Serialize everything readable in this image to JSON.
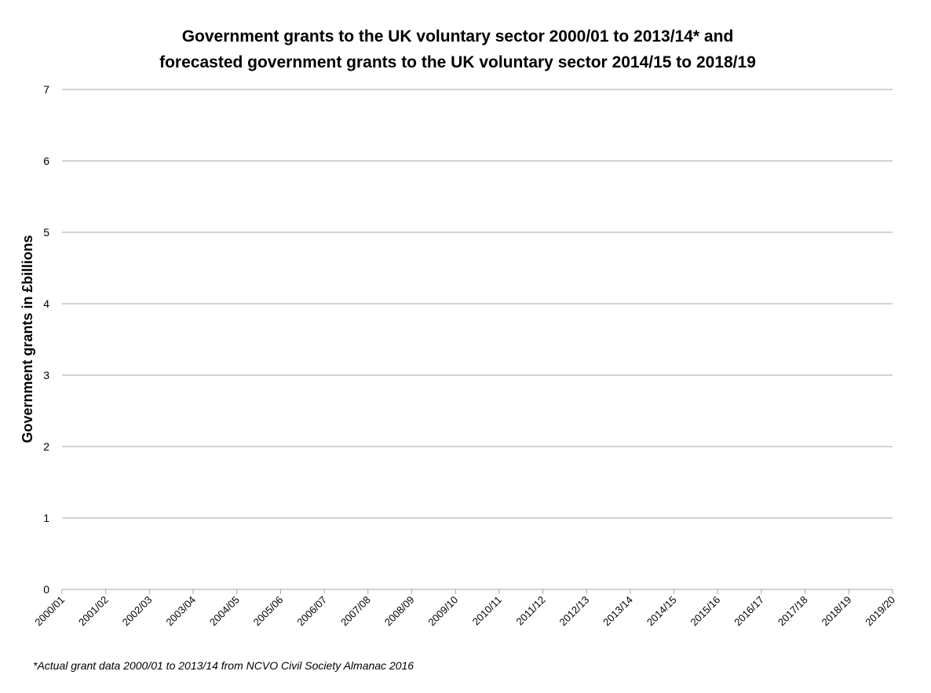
{
  "chart_data": {
    "type": "line",
    "title_lines": [
      "Government grants to the UK voluntary sector 2000/01 to 2013/14*  and",
      "forecasted government grants to the UK voluntary sector 2014/15 to 2018/19"
    ],
    "xlabel": "",
    "ylabel": "Government grants in £billions",
    "categories": [
      "2000/01",
      "2001/02",
      "2002/03",
      "2003/04",
      "2004/05",
      "2005/06",
      "2006/07",
      "2007/08",
      "2008/09",
      "2009/10",
      "2010/11",
      "2011/12",
      "2012/13",
      "2013/14",
      "2014/15",
      "2015/16",
      "2016/17",
      "2017/18",
      "2018/19",
      "2019/20"
    ],
    "ylim": [
      0,
      7
    ],
    "yticks": [
      "0",
      "1",
      "2",
      "3",
      "4",
      "5",
      "6",
      "7"
    ],
    "grid": true,
    "series": [],
    "footnote": "*Actual grant data 2000/01 to 2013/14 from NCVO Civil Society Almanac 2016"
  }
}
